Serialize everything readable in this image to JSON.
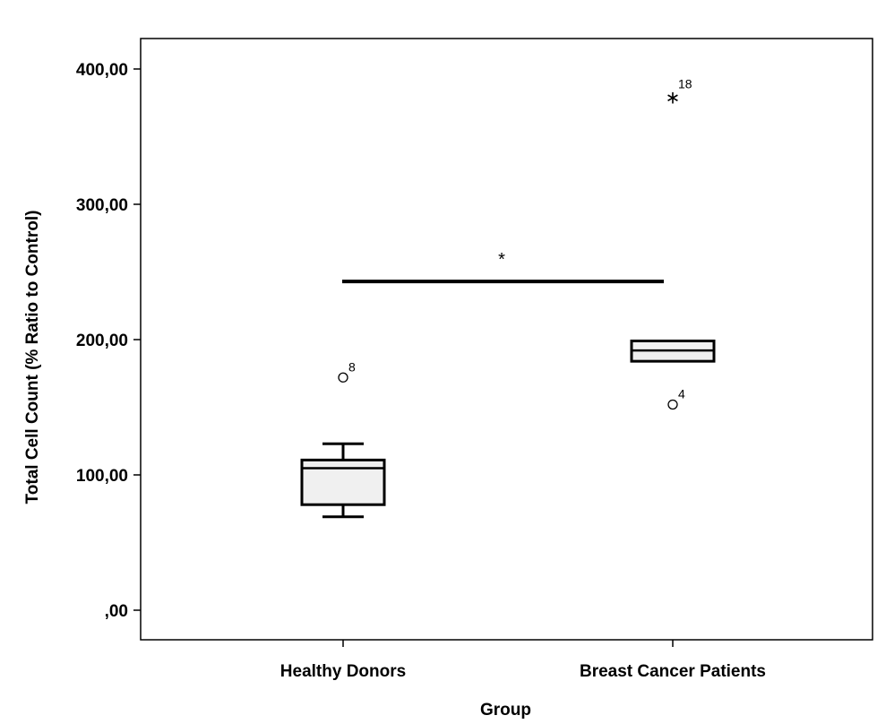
{
  "chart_data": {
    "type": "box",
    "xlabel": "Group",
    "ylabel": "Total Cell Count (% Ratio to Control)",
    "ylim": [
      -20,
      425
    ],
    "yticks": [
      {
        "value": 0,
        "label": ",00"
      },
      {
        "value": 100,
        "label": "100,00"
      },
      {
        "value": 200,
        "label": "200,00"
      },
      {
        "value": 300,
        "label": "300,00"
      },
      {
        "value": 400,
        "label": "400,00"
      }
    ],
    "categories": [
      "Healthy Donors",
      "Breast Cancer Patients"
    ],
    "boxes": [
      {
        "category": "Healthy Donors",
        "whisker_low": 69,
        "q1": 78,
        "median": 105,
        "q3": 111,
        "whisker_high": 123,
        "outliers": [
          {
            "value": 172,
            "label": "8",
            "marker": "circle"
          }
        ]
      },
      {
        "category": "Breast Cancer Patients",
        "whisker_low": 184,
        "q1": 184,
        "median": 192,
        "q3": 199,
        "whisker_high": 199,
        "outliers": [
          {
            "value": 152,
            "label": "4",
            "marker": "circle"
          },
          {
            "value": 381,
            "label": "18",
            "marker": "star"
          }
        ]
      }
    ],
    "significance": {
      "y": 243,
      "label": "*",
      "from": "Healthy Donors",
      "to": "Breast Cancer Patients"
    },
    "grid": false,
    "box_fill": "#f0f0f0",
    "line_color": "#000000"
  }
}
